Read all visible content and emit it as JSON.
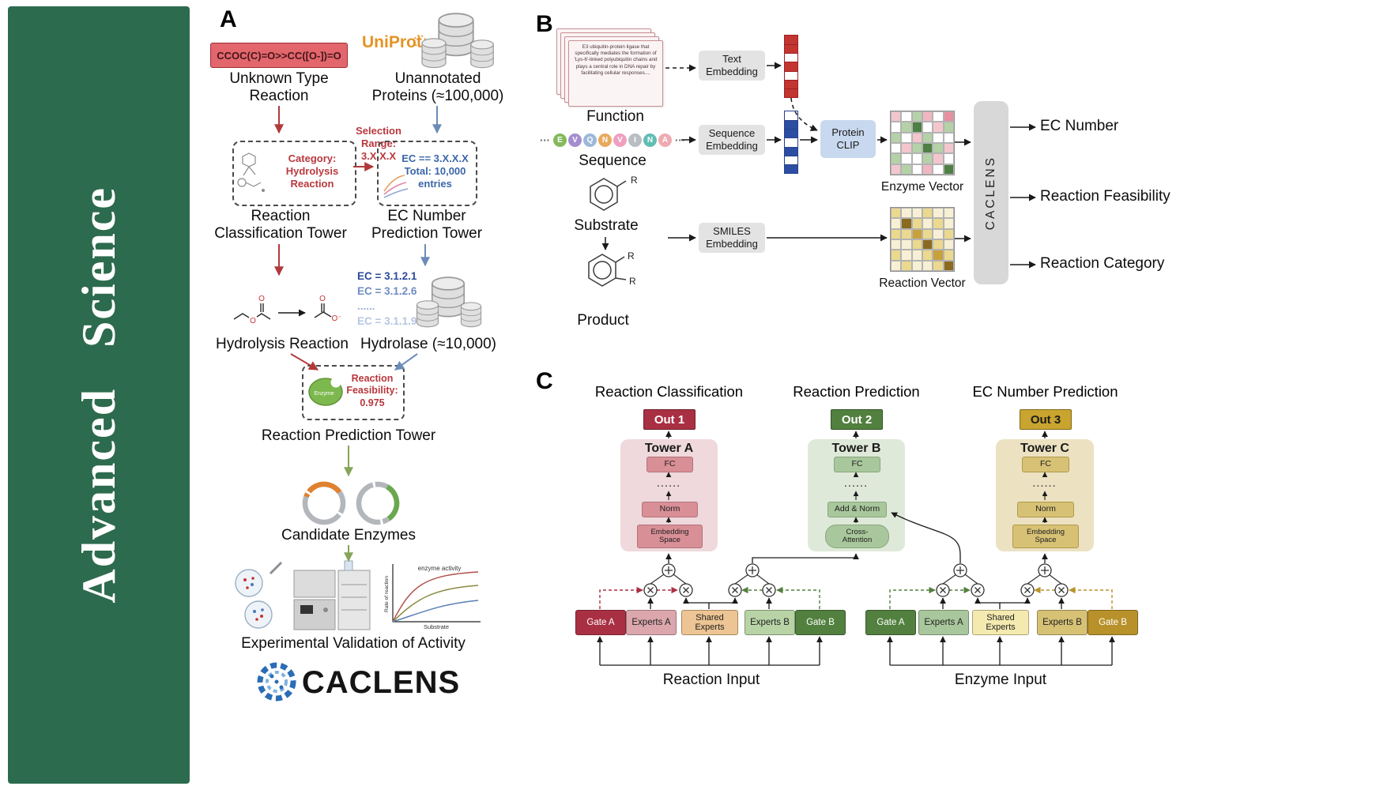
{
  "journal": {
    "name": "Advanced Science"
  },
  "colors": {
    "sidebar_green": "#2d6b4e",
    "smiles_red": "#e2666c",
    "arrow_red": "#b03a3a",
    "arrow_blue": "#6b8cb8",
    "arrow_green": "#85a55a",
    "crimson": "#a93043",
    "dark_green": "#52803f",
    "gold": "#b8912a",
    "tower_a_fill": "#efd9dc",
    "tower_b_fill": "#dfe9d9",
    "tower_c_fill": "#ece2c2"
  },
  "panelA": {
    "label": "A",
    "smiles": "CCOC(C)=O>>CC([O-])=O",
    "unknown_type": "Unknown Type\nReaction",
    "uniprot": "UniProt",
    "unannotated": "Unannotated\nProteins (≈100,000)",
    "category": "Category:\nHydrolysis\nReaction",
    "selection": "Selection\nRange:\n3.X.X.X",
    "ec_filter": "EC == 3.X.X.X\nTotal: 10,000\nentries",
    "classification_tower": "Reaction\nClassification Tower",
    "ec_tower": "EC Number\nPrediction Tower",
    "ec_list": [
      "EC = 3.1.2.1",
      "EC = 3.1.2.6",
      "......",
      "EC = 3.1.1.9"
    ],
    "hydrolysis": "Hydrolysis Reaction",
    "hydrolase": "Hydrolase (≈10,000)",
    "enzyme": "Enzyme",
    "feasibility": "Reaction\nFeasibility:\n0.975",
    "prediction_tower": "Reaction Prediction Tower",
    "candidates": "Candidate Enzymes",
    "validation": "Experimental Validation of Activity",
    "wordmark": "CACLENS",
    "graph": {
      "title": "enzyme activity",
      "ylabel": "Rate of reaction",
      "xlabel": "Substrate"
    },
    "atoms": {
      "o": "O",
      "ominus": "O⁻"
    }
  },
  "panelB": {
    "label": "B",
    "function_text": "E3 ubiquitin-protein ligase that specifically mediates the formation of 'Lys-6'-linked polyubiquitin chains and plays a central role in DNA repair by facilitating cellular responses....",
    "function": "Function",
    "ellipsis": "···",
    "sequence_letters": [
      {
        "ch": "E",
        "color": "#86b95c"
      },
      {
        "ch": "V",
        "color": "#a48ed0"
      },
      {
        "ch": "Q",
        "color": "#9db8d8"
      },
      {
        "ch": "N",
        "color": "#e8a95e"
      },
      {
        "ch": "V",
        "color": "#ef9fc0"
      },
      {
        "ch": "I",
        "color": "#b9bec4"
      },
      {
        "ch": "N",
        "color": "#62bdb2"
      },
      {
        "ch": "A",
        "color": "#eeaab2"
      }
    ],
    "sequence": "Sequence",
    "substrate": "Substrate",
    "product": "Product",
    "r": "R",
    "text_embedding": "Text\nEmbedding",
    "sequence_embedding": "Sequence\nEmbedding",
    "smiles_embedding": "SMILES\nEmbedding",
    "protein_clip": "Protein\nCLIP",
    "enzyme_vector": "Enzyme Vector",
    "reaction_vector": "Reaction Vector",
    "caclens": "CACLENS",
    "outputs": [
      "EC Number",
      "Reaction Feasibility",
      "Reaction Category"
    ],
    "text_vector_cells": [
      "#c23531",
      "#c23531",
      "#ffffff",
      "#c23531",
      "#ffffff",
      "#c23531",
      "#c23531"
    ],
    "seq_vector_cells": [
      "#ffffff",
      "#2b4ea2",
      "#2b4ea2",
      "#ffffff",
      "#2b4ea2",
      "#ffffff",
      "#2b4ea2"
    ],
    "enzyme_matrix": [
      "#f3c6ce",
      "#ffffff",
      "#b5d1a8",
      "#f0b7c0",
      "#ffffff",
      "#e88fa0",
      "#ffffff",
      "#b5d1a8",
      "#4e7f44",
      "#ffffff",
      "#f3c6ce",
      "#b5d1a8",
      "#b5d1a8",
      "#ffffff",
      "#f3c6ce",
      "#b5d1a8",
      "#ffffff",
      "#ffffff",
      "#ffffff",
      "#f3c6ce",
      "#b5d1a8",
      "#4e7f44",
      "#b5d1a8",
      "#f3c6ce",
      "#b5d1a8",
      "#ffffff",
      "#ffffff",
      "#b5d1a8",
      "#f3c6ce",
      "#ffffff",
      "#f3c6ce",
      "#b5d1a8",
      "#ffffff",
      "#f0b7c0",
      "#ffffff",
      "#4e7f44"
    ],
    "reaction_matrix": [
      "#ead98e",
      "#f7f0d4",
      "#f7f0d4",
      "#ead98e",
      "#f7f0d4",
      "#f7f0d4",
      "#f7f0d4",
      "#8a6a1f",
      "#ead98e",
      "#f7f0d4",
      "#ead98e",
      "#f7f0d4",
      "#ead98e",
      "#ead98e",
      "#c9a13b",
      "#ead98e",
      "#f7f0d4",
      "#ead98e",
      "#f7f0d4",
      "#f7f0d4",
      "#ead98e",
      "#8a6a1f",
      "#ead98e",
      "#f7f0d4",
      "#ead98e",
      "#f7f0d4",
      "#f7f0d4",
      "#ead98e",
      "#c9a13b",
      "#ead98e",
      "#f7f0d4",
      "#ead98e",
      "#f7f0d4",
      "#f7f0d4",
      "#ead98e",
      "#8a6a1f"
    ]
  },
  "panelC": {
    "label": "C",
    "columns": [
      "Reaction Classification",
      "Reaction Prediction",
      "EC Number Prediction"
    ],
    "outs": [
      "Out 1",
      "Out 2",
      "Out 3"
    ],
    "towers": [
      {
        "name": "Tower A",
        "fc": "FC",
        "dots": "......",
        "mid": "Norm",
        "bottom": "Embedding\nSpace"
      },
      {
        "name": "Tower B",
        "fc": "FC",
        "dots": "......",
        "mid": "Add & Norm",
        "bottom": "Cross-\nAttention"
      },
      {
        "name": "Tower C",
        "fc": "FC",
        "dots": "......",
        "mid": "Norm",
        "bottom": "Embedding\nSpace"
      }
    ],
    "moe_left": {
      "gate_a": "Gate A",
      "experts_a": "Experts A",
      "shared": "Shared\nExperts",
      "experts_b": "Experts B",
      "gate_b": "Gate B",
      "input": "Reaction Input"
    },
    "moe_right": {
      "gate_a": "Gate A",
      "experts_a": "Experts A",
      "shared": "Shared\nExperts",
      "experts_b": "Experts B",
      "gate_b": "Gate B",
      "input": "Enzyme Input"
    }
  }
}
